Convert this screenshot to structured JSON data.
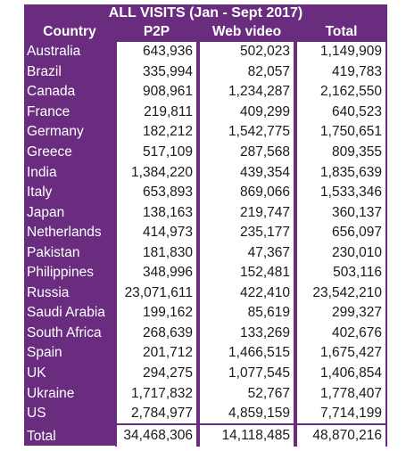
{
  "title": "ALL VISITS (Jan - Sept 2017)",
  "headers": [
    "Country",
    "P2P",
    "Web video",
    "Total"
  ],
  "rows": [
    {
      "country": "Australia",
      "p2p": "643,936",
      "web_video": "502,023",
      "total": "1,149,909"
    },
    {
      "country": "Brazil",
      "p2p": "335,994",
      "web_video": "82,057",
      "total": "419,783"
    },
    {
      "country": "Canada",
      "p2p": "908,961",
      "web_video": "1,234,287",
      "total": "2,162,550"
    },
    {
      "country": "France",
      "p2p": "219,811",
      "web_video": "409,299",
      "total": "640,523"
    },
    {
      "country": "Germany",
      "p2p": "182,212",
      "web_video": "1,542,775",
      "total": "1,750,651"
    },
    {
      "country": "Greece",
      "p2p": "517,109",
      "web_video": "287,568",
      "total": "809,355"
    },
    {
      "country": "India",
      "p2p": "1,384,220",
      "web_video": "439,354",
      "total": "1,835,639"
    },
    {
      "country": "Italy",
      "p2p": "653,893",
      "web_video": "869,066",
      "total": "1,533,346"
    },
    {
      "country": "Japan",
      "p2p": "138,163",
      "web_video": "219,747",
      "total": "360,137"
    },
    {
      "country": "Netherlands",
      "p2p": "414,973",
      "web_video": "235,177",
      "total": "656,097"
    },
    {
      "country": "Pakistan",
      "p2p": "181,830",
      "web_video": "47,367",
      "total": "230,010"
    },
    {
      "country": "Philippines",
      "p2p": "348,996",
      "web_video": "152,481",
      "total": "503,116"
    },
    {
      "country": "Russia",
      "p2p": "23,071,611",
      "web_video": "422,410",
      "total": "23,542,210"
    },
    {
      "country": "Saudi Arabia",
      "p2p": "199,162",
      "web_video": "85,619",
      "total": "299,327"
    },
    {
      "country": "South Africa",
      "p2p": "268,639",
      "web_video": "133,269",
      "total": "402,676"
    },
    {
      "country": "Spain",
      "p2p": "201,712",
      "web_video": "1,466,515",
      "total": "1,675,427"
    },
    {
      "country": "UK",
      "p2p": "294,275",
      "web_video": "1,077,545",
      "total": "1,406,854"
    },
    {
      "country": "Ukraine",
      "p2p": "1,717,832",
      "web_video": "52,767",
      "total": "1,778,407"
    },
    {
      "country": "US",
      "p2p": "2,784,977",
      "web_video": "4,859,159",
      "total": "7,714,199"
    }
  ],
  "total_row": {
    "country": "Total",
    "p2p": "34,468,306",
    "web_video": "14,118,485",
    "total": "48,870,216"
  },
  "colors": {
    "accent": "#6a2c7e",
    "cell_bg": "#ffffff",
    "header_text": "#ffffff"
  }
}
